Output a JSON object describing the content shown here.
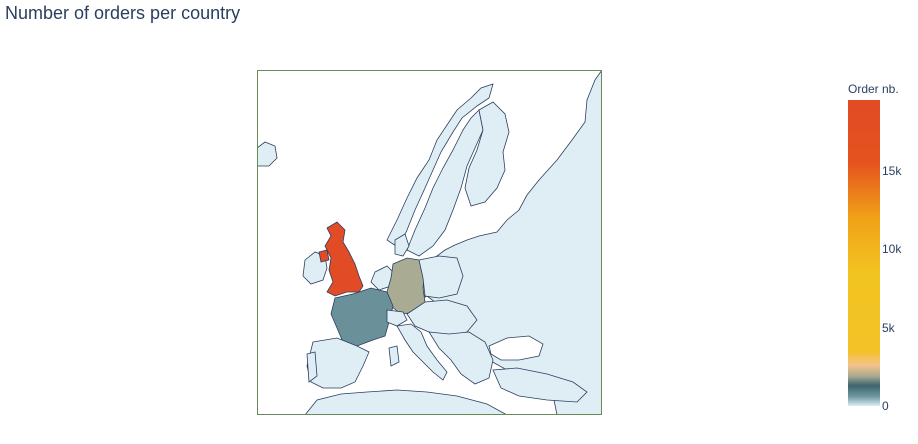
{
  "title": "Number of orders per country",
  "colorbar": {
    "title": "Order nb.",
    "ticks": [
      "0",
      "5k",
      "10k",
      "15k"
    ],
    "max": 19500,
    "stops": [
      {
        "v": 0,
        "color": "#dfeef5"
      },
      {
        "v": 600,
        "color": "#6f98a1"
      },
      {
        "v": 1300,
        "color": "#3f6470"
      },
      {
        "v": 1900,
        "color": "#a7a991"
      },
      {
        "v": 2600,
        "color": "#f4c38a"
      },
      {
        "v": 3500,
        "color": "#f3c227"
      },
      {
        "v": 8500,
        "color": "#f2c420"
      },
      {
        "v": 12000,
        "color": "#f1a118"
      },
      {
        "v": 15500,
        "color": "#e5531f"
      },
      {
        "v": 19500,
        "color": "#e14b25"
      }
    ]
  },
  "colors": {
    "land": "#dfeef5",
    "border": "#2a3f5f",
    "frame": "#6a8a5a"
  },
  "countries": [
    {
      "name": "United Kingdom",
      "color": "#e14b25"
    },
    {
      "name": "Germany",
      "color": "#a9ab93"
    },
    {
      "name": "France",
      "color": "#6a9099"
    },
    {
      "name": "Spain",
      "color": "#dfeef5"
    }
  ]
}
